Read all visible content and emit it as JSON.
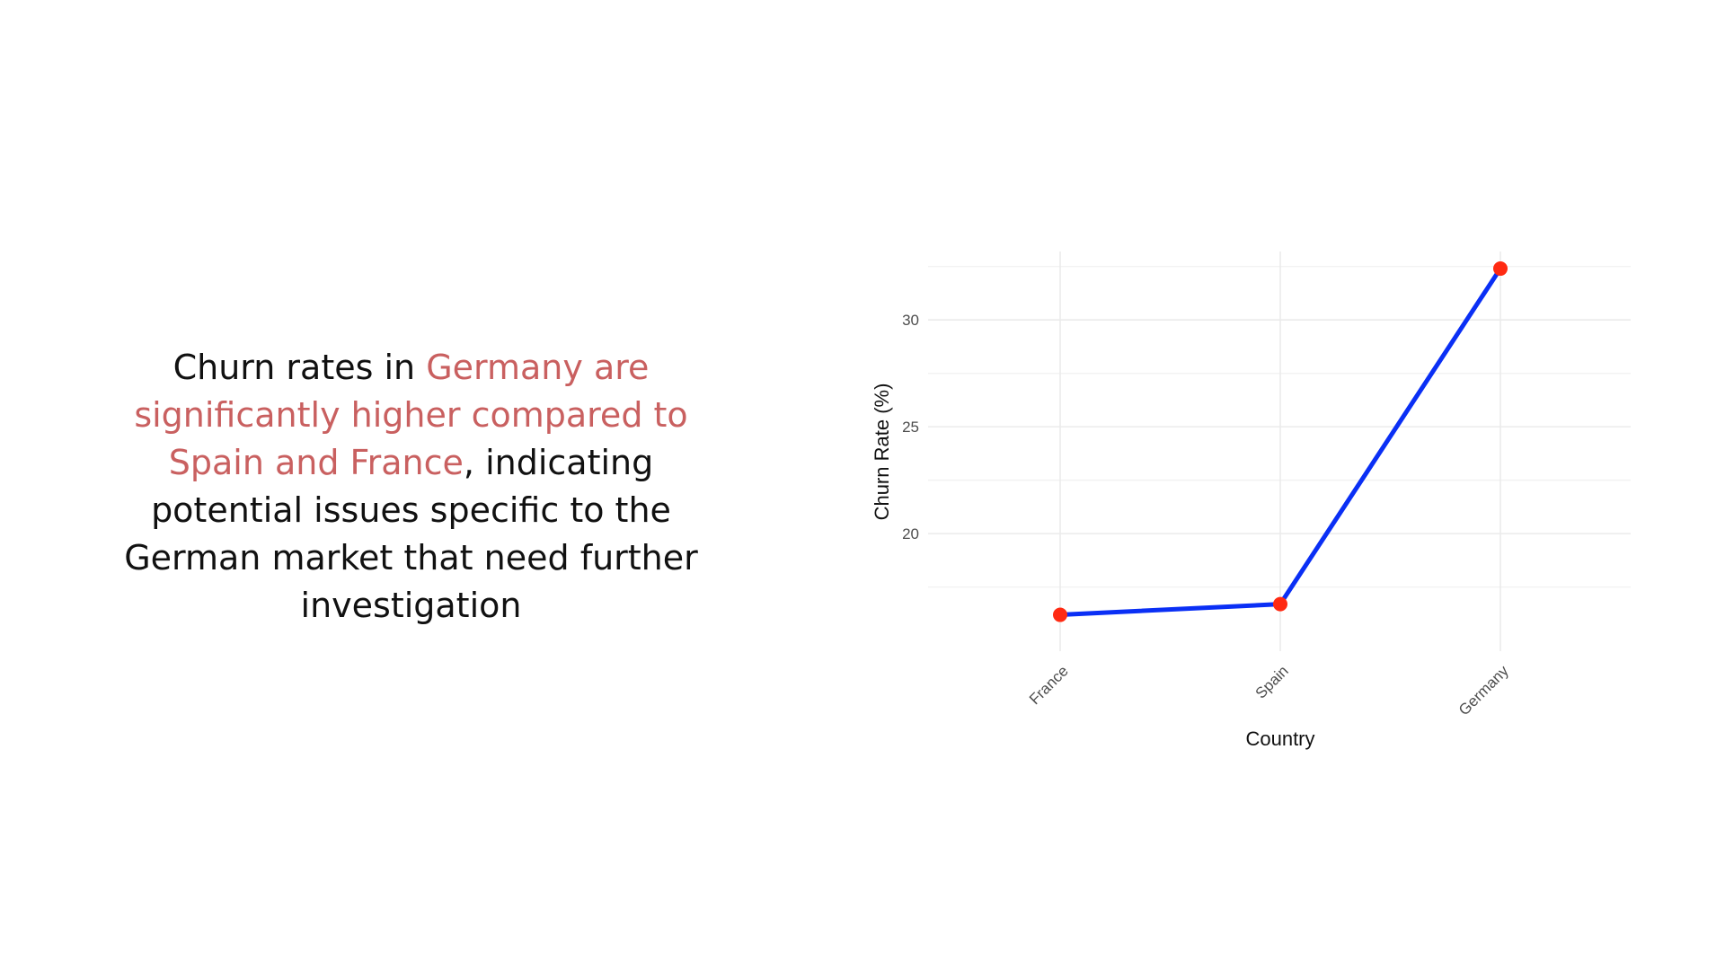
{
  "statement": {
    "part1": "Churn rates in ",
    "highlight": "Germany are significantly higher compared to Spain and France",
    "part2": ", indicating potential issues specific to the German market that need further investigation"
  },
  "colors": {
    "highlight": "#c96060",
    "line": "#0a2ff5",
    "point": "#ff2a12",
    "text": "#111111"
  },
  "chart_data": {
    "type": "line",
    "title": "",
    "xlabel": "Country",
    "ylabel": "Churn Rate (%)",
    "categories": [
      "France",
      "Spain",
      "Germany"
    ],
    "series": [
      {
        "values": [
          16.2,
          16.7,
          32.4
        ]
      }
    ],
    "ylim": [
      14.5,
      33.2
    ],
    "yticks": [
      20,
      25,
      30
    ],
    "grid": true,
    "legend": "none"
  }
}
